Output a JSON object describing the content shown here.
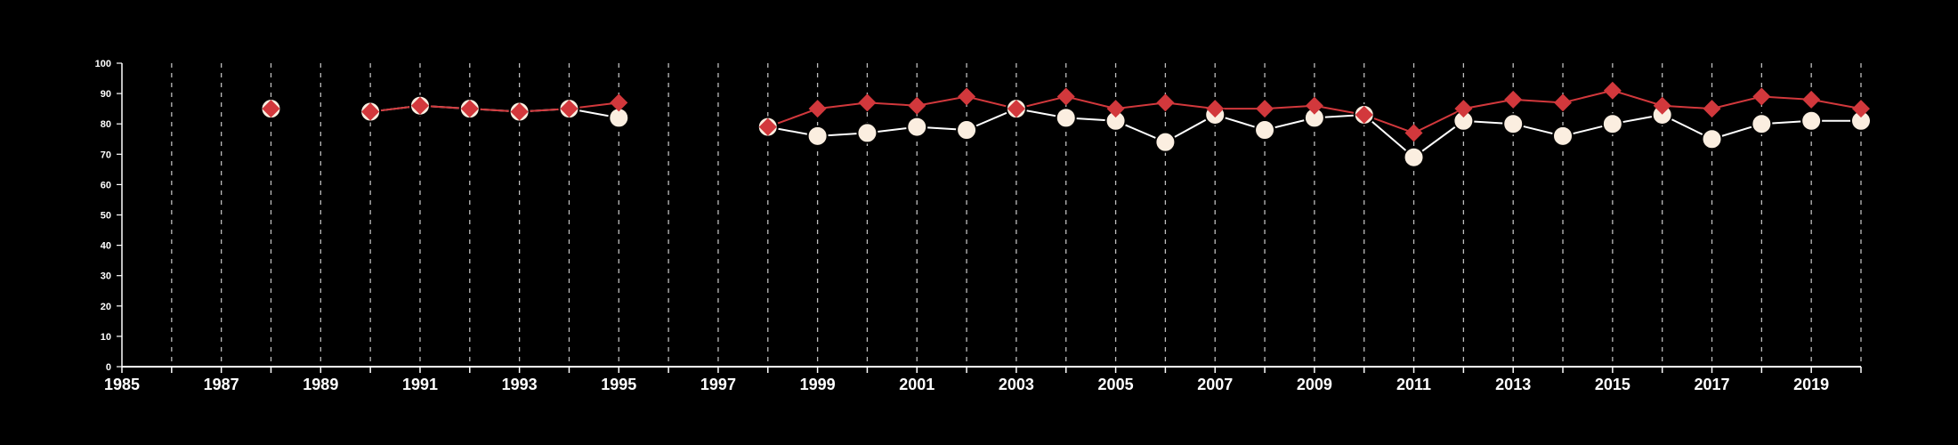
{
  "chart_data": {
    "type": "line",
    "title": "",
    "xlabel": "",
    "ylabel": "",
    "xlim": [
      1985,
      2020
    ],
    "ylim": [
      0,
      100
    ],
    "x_ticks": [
      1985,
      1987,
      1989,
      1991,
      1993,
      1995,
      1997,
      1999,
      2001,
      2003,
      2005,
      2007,
      2009,
      2011,
      2013,
      2015,
      2017,
      2019
    ],
    "y_ticks": [
      0,
      10,
      20,
      30,
      40,
      50,
      60,
      70,
      80,
      90,
      100
    ],
    "vertical_gridlines": "dashed, every year 1986-2020",
    "background": "#000000",
    "series": [
      {
        "color": "#fbeee0",
        "line_color": "#ffffff",
        "marker": "circle",
        "points": [
          [
            1988,
            85
          ],
          [
            1990,
            84
          ],
          [
            1991,
            86
          ],
          [
            1992,
            85
          ],
          [
            1993,
            84
          ],
          [
            1994,
            85
          ],
          [
            1995,
            82
          ],
          [
            1998,
            79
          ],
          [
            1999,
            76
          ],
          [
            2000,
            77
          ],
          [
            2001,
            79
          ],
          [
            2002,
            78
          ],
          [
            2003,
            85
          ],
          [
            2004,
            82
          ],
          [
            2005,
            81
          ],
          [
            2006,
            74
          ],
          [
            2007,
            83
          ],
          [
            2008,
            78
          ],
          [
            2009,
            82
          ],
          [
            2010,
            83
          ],
          [
            2011,
            69
          ],
          [
            2012,
            81
          ],
          [
            2013,
            80
          ],
          [
            2014,
            76
          ],
          [
            2015,
            80
          ],
          [
            2016,
            83
          ],
          [
            2017,
            75
          ],
          [
            2018,
            80
          ],
          [
            2019,
            81
          ],
          [
            2020,
            81
          ]
        ]
      },
      {
        "color": "#d2383c",
        "line_color": "#d2383c",
        "marker": "diamond",
        "points": [
          [
            1988,
            85
          ],
          [
            1990,
            84
          ],
          [
            1991,
            86
          ],
          [
            1992,
            85
          ],
          [
            1993,
            84
          ],
          [
            1994,
            85
          ],
          [
            1995,
            87
          ],
          [
            1998,
            79
          ],
          [
            1999,
            85
          ],
          [
            2000,
            87
          ],
          [
            2001,
            86
          ],
          [
            2002,
            89
          ],
          [
            2003,
            85
          ],
          [
            2004,
            89
          ],
          [
            2005,
            85
          ],
          [
            2006,
            87
          ],
          [
            2007,
            85
          ],
          [
            2008,
            85
          ],
          [
            2009,
            86
          ],
          [
            2010,
            83
          ],
          [
            2011,
            77
          ],
          [
            2012,
            85
          ],
          [
            2013,
            88
          ],
          [
            2014,
            87
          ],
          [
            2015,
            91
          ],
          [
            2016,
            86
          ],
          [
            2017,
            85
          ],
          [
            2018,
            89
          ],
          [
            2019,
            88
          ],
          [
            2020,
            85
          ]
        ]
      }
    ]
  }
}
